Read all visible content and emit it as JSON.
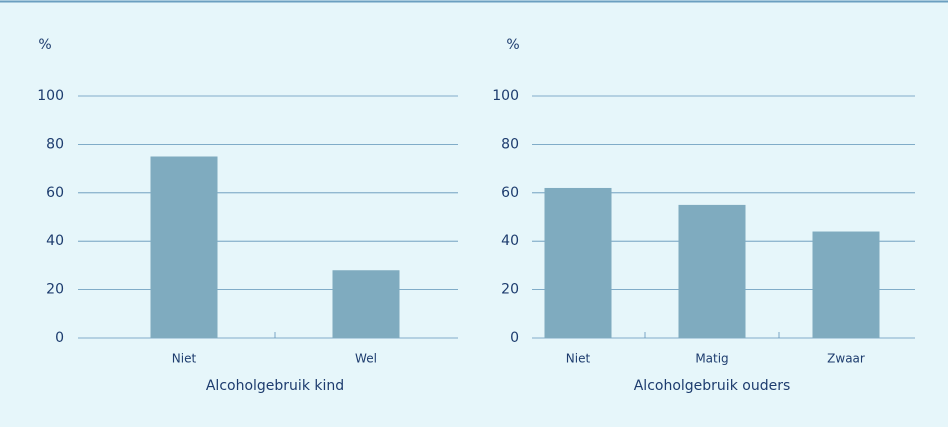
{
  "chart_data": [
    {
      "type": "bar",
      "y_label": "%",
      "x_label": "Alcoholgebruik kind",
      "categories": [
        "Niet",
        "Wel"
      ],
      "values": [
        75,
        28
      ],
      "color": "#7fabbf",
      "ylim": [
        0,
        100
      ],
      "yticks": [
        0,
        20,
        40,
        60,
        80,
        100
      ],
      "grid": true
    },
    {
      "type": "bar",
      "y_label": "%",
      "x_label": "Alcoholgebruik ouders",
      "categories": [
        "Niet",
        "Matig",
        "Zwaar"
      ],
      "values": [
        62,
        55,
        44
      ],
      "color": "#7fabbf",
      "ylim": [
        0,
        100
      ],
      "yticks": [
        0,
        20,
        40,
        60,
        80,
        100
      ],
      "grid": true
    }
  ]
}
